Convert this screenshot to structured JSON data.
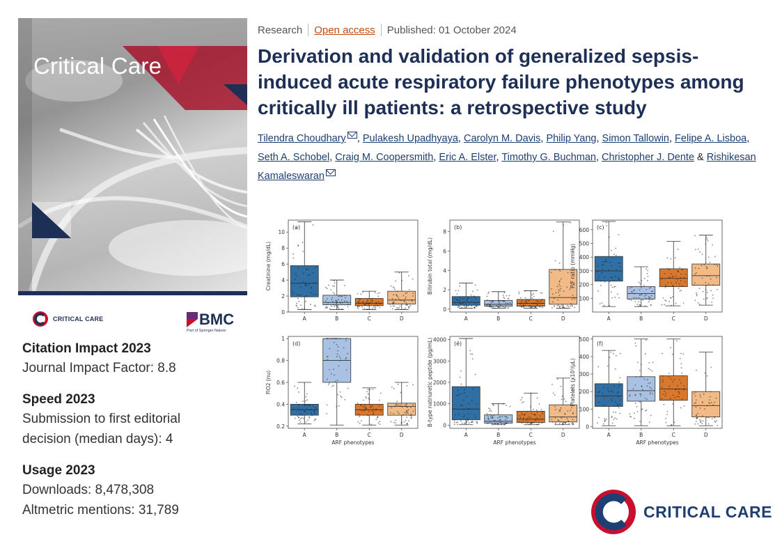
{
  "cover": {
    "journal_title": "Critical Care",
    "brand_small": "CRITICAL CARE",
    "publisher": "BMC",
    "publisher_sub": "Part of Springer Nature"
  },
  "metrics": {
    "citation_heading": "Citation Impact 2023",
    "citation_line": "Journal Impact Factor: 8.8",
    "speed_heading": "Speed 2023",
    "speed_line1": "Submission to first editorial",
    "speed_line2": "decision (median days): 4",
    "usage_heading": "Usage 2023",
    "usage_line1": "Downloads: 8,478,308",
    "usage_line2": "Altmetric mentions: 31,789"
  },
  "article": {
    "type": "Research",
    "access": "Open access",
    "published": "Published: 01 October 2024",
    "title": "Derivation and validation of generalized sepsis-induced acute respiratory failure phenotypes among critically ill patients: a retrospective study",
    "authors": [
      {
        "name": "Tilendra Choudhary",
        "mail": true
      },
      {
        "name": "Pulakesh Upadhyaya",
        "mail": false
      },
      {
        "name": "Carolyn M. Davis",
        "mail": false
      },
      {
        "name": "Philip Yang",
        "mail": false
      },
      {
        "name": "Simon Tallowin",
        "mail": false
      },
      {
        "name": "Felipe A. Lisboa",
        "mail": false
      },
      {
        "name": "Seth A. Schobel",
        "mail": false
      },
      {
        "name": "Craig M. Coopersmith",
        "mail": false
      },
      {
        "name": "Eric A. Elster",
        "mail": false
      },
      {
        "name": "Timothy G. Buchman",
        "mail": false
      },
      {
        "name": "Christopher J. Dente",
        "mail": false
      },
      {
        "name": "Rishikesan Kamaleswaran",
        "mail": true
      }
    ],
    "author_sep": ",",
    "author_and": "&"
  },
  "logo": {
    "text": "CRITICAL CARE"
  },
  "chart_data": [
    {
      "type": "box",
      "panel": "(a)",
      "ylabel": "Creatinine (mg/dL)",
      "xlabel": "",
      "categories": [
        "A",
        "B",
        "C",
        "D"
      ],
      "ylim": [
        0,
        11.5
      ],
      "yticks": [
        0,
        2,
        4,
        6,
        8,
        10
      ],
      "boxes": [
        {
          "q1": 1.9,
          "median": 3.6,
          "q3": 5.8,
          "whisker_low": 0.3,
          "whisker_high": 11.3
        },
        {
          "q1": 0.9,
          "median": 1.2,
          "q3": 2.1,
          "whisker_low": 0.3,
          "whisker_high": 4.0
        },
        {
          "q1": 0.8,
          "median": 1.1,
          "q3": 1.7,
          "whisker_low": 0.3,
          "whisker_high": 2.6
        },
        {
          "q1": 1.0,
          "median": 1.5,
          "q3": 2.6,
          "whisker_low": 0.3,
          "whisker_high": 5.0
        }
      ]
    },
    {
      "type": "box",
      "panel": "(b)",
      "ylabel": "Bilirubin total (mg/dL)",
      "xlabel": "",
      "categories": [
        "A",
        "B",
        "C",
        "D"
      ],
      "ylim": [
        -0.3,
        9.2
      ],
      "yticks": [
        0,
        2,
        4,
        6,
        8
      ],
      "boxes": [
        {
          "q1": 0.4,
          "median": 0.7,
          "q3": 1.3,
          "whisker_low": 0.1,
          "whisker_high": 2.7
        },
        {
          "q1": 0.3,
          "median": 0.5,
          "q3": 0.9,
          "whisker_low": 0.1,
          "whisker_high": 1.8
        },
        {
          "q1": 0.3,
          "median": 0.6,
          "q3": 1.0,
          "whisker_low": 0.1,
          "whisker_high": 1.9
        },
        {
          "q1": 0.5,
          "median": 1.2,
          "q3": 4.1,
          "whisker_low": 0.1,
          "whisker_high": 9.0
        }
      ]
    },
    {
      "type": "box",
      "panel": "(c)",
      "ylabel": "P/F ratio (mmHg)",
      "xlabel": "",
      "categories": [
        "A",
        "B",
        "C",
        "D"
      ],
      "ylim": [
        0,
        670
      ],
      "yticks": [
        100,
        200,
        300,
        400,
        500,
        600
      ],
      "boxes": [
        {
          "q1": 225,
          "median": 300,
          "q3": 405,
          "whisker_low": 40,
          "whisker_high": 660
        },
        {
          "q1": 95,
          "median": 135,
          "q3": 185,
          "whisker_low": 40,
          "whisker_high": 330
        },
        {
          "q1": 185,
          "median": 245,
          "q3": 315,
          "whisker_low": 45,
          "whisker_high": 515
        },
        {
          "q1": 195,
          "median": 265,
          "q3": 350,
          "whisker_low": 50,
          "whisker_high": 560
        }
      ]
    },
    {
      "type": "box",
      "panel": "(d)",
      "ylabel": "FiO2 (nu)",
      "xlabel": "ARF phenotypes",
      "categories": [
        "A",
        "B",
        "C",
        "D"
      ],
      "ylim": [
        0.18,
        1.02
      ],
      "yticks": [
        0.2,
        0.4,
        0.6,
        0.8,
        1.0
      ],
      "boxes": [
        {
          "q1": 0.3,
          "median": 0.35,
          "q3": 0.4,
          "whisker_low": 0.22,
          "whisker_high": 0.6
        },
        {
          "q1": 0.6,
          "median": 0.8,
          "q3": 1.0,
          "whisker_low": 0.21,
          "whisker_high": 1.0
        },
        {
          "q1": 0.3,
          "median": 0.35,
          "q3": 0.4,
          "whisker_low": 0.21,
          "whisker_high": 0.55
        },
        {
          "q1": 0.3,
          "median": 0.38,
          "q3": 0.41,
          "whisker_low": 0.21,
          "whisker_high": 0.6
        }
      ]
    },
    {
      "type": "box",
      "panel": "(e)",
      "ylabel": "B-type natriuretic peptide (pg/mL)",
      "xlabel": "ARF phenotypes",
      "categories": [
        "A",
        "B",
        "C",
        "D"
      ],
      "ylim": [
        -150,
        4150
      ],
      "yticks": [
        0,
        1000,
        2000,
        3000,
        4000
      ],
      "boxes": [
        {
          "q1": 250,
          "median": 750,
          "q3": 1800,
          "whisker_low": 20,
          "whisker_high": 4050
        },
        {
          "q1": 90,
          "median": 180,
          "q3": 480,
          "whisker_low": 20,
          "whisker_high": 1000
        },
        {
          "q1": 120,
          "median": 280,
          "q3": 650,
          "whisker_low": 20,
          "whisker_high": 1500
        },
        {
          "q1": 150,
          "median": 380,
          "q3": 950,
          "whisker_low": 20,
          "whisker_high": 2200
        }
      ]
    },
    {
      "type": "box",
      "panel": "(f)",
      "ylabel": "Platelets (x10³/μL)",
      "xlabel": "ARF phenotypes",
      "categories": [
        "A",
        "B",
        "C",
        "D"
      ],
      "ylim": [
        -10,
        515
      ],
      "yticks": [
        0,
        100,
        200,
        300,
        400,
        500
      ],
      "boxes": [
        {
          "q1": 115,
          "median": 175,
          "q3": 245,
          "whisker_low": 5,
          "whisker_high": 435
        },
        {
          "q1": 145,
          "median": 205,
          "q3": 285,
          "whisker_low": 5,
          "whisker_high": 500
        },
        {
          "q1": 150,
          "median": 215,
          "q3": 290,
          "whisker_low": 5,
          "whisker_high": 500
        },
        {
          "q1": 55,
          "median": 120,
          "q3": 200,
          "whisker_low": 5,
          "whisker_high": 425
        }
      ]
    }
  ],
  "chart_colors": [
    "#2f6fa3",
    "#a9c2e3",
    "#d9782d",
    "#f1ba86"
  ]
}
